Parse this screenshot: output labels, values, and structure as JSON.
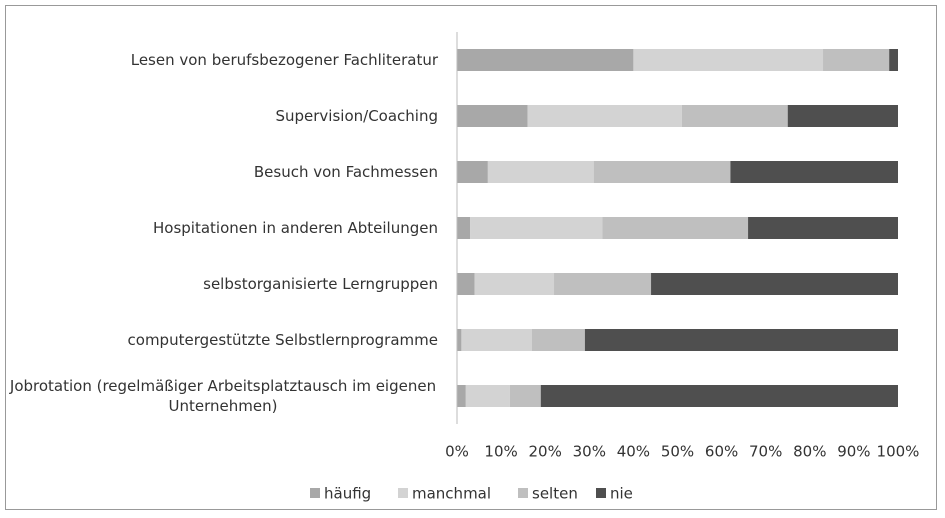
{
  "chart_data": {
    "type": "stacked_bar_horizontal",
    "categories": [
      "Lesen von berufsbezogener Fachliteratur",
      "Supervision/Coaching",
      "Besuch von Fachmessen",
      "Hospitationen in anderen Abteilungen",
      "selbstorganisierte Lerngruppen",
      "computergestützte Selbstlernprogramme",
      "Jobrotation (regelmäßiger Arbeitsplatztausch im eigenen Unternehmen)"
    ],
    "series": [
      {
        "name": "häufig",
        "color": "#a8a8a8",
        "values": [
          40,
          16,
          7,
          3,
          4,
          1,
          2
        ]
      },
      {
        "name": "manchmal",
        "color": "#d3d3d3",
        "values": [
          43,
          35,
          24,
          30,
          18,
          16,
          10
        ]
      },
      {
        "name": "selten",
        "color": "#bfbfbf",
        "values": [
          15,
          24,
          31,
          33,
          22,
          12,
          7
        ]
      },
      {
        "name": "nie",
        "color": "#4f4f4f",
        "values": [
          2,
          25,
          38,
          34,
          56,
          71,
          81
        ]
      }
    ],
    "xlim": [
      0,
      100
    ],
    "xticks": [
      {
        "value": 0,
        "label": "0%"
      },
      {
        "value": 10,
        "label": "10%"
      },
      {
        "value": 20,
        "label": "20%"
      },
      {
        "value": 30,
        "label": "30%"
      },
      {
        "value": 40,
        "label": "40%"
      },
      {
        "value": 50,
        "label": "50%"
      },
      {
        "value": 60,
        "label": "60%"
      },
      {
        "value": 70,
        "label": "70%"
      },
      {
        "value": 80,
        "label": "80%"
      },
      {
        "value": 90,
        "label": "90%"
      },
      {
        "value": 100,
        "label": "100%"
      }
    ],
    "legend": "bottom"
  }
}
